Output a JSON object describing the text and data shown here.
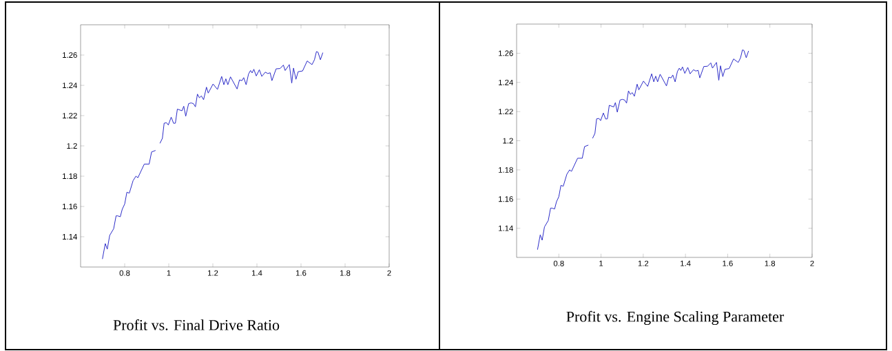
{
  "chart_data": [
    {
      "type": "line",
      "title": "Profit vs. Final Drive Ratio",
      "xlim": [
        0.6,
        2
      ],
      "ylim": [
        1.12,
        1.28
      ],
      "xticks": [
        0.8,
        1,
        1.2,
        1.4,
        1.6,
        1.8,
        2
      ],
      "yticks": [
        1.14,
        1.16,
        1.18,
        1.2,
        1.22,
        1.24,
        1.26
      ],
      "series": [
        {
          "color": "#2b2bc8",
          "x": [
            0.699,
            0.712,
            0.721,
            0.732,
            0.75,
            0.761,
            0.768,
            0.78,
            0.789,
            0.8,
            0.81,
            0.821,
            0.838,
            0.851,
            0.86,
            0.889,
            0.9,
            0.911,
            0.922,
            0.94,
            0.95,
            0.96,
            0.971,
            0.979,
            0.99,
            0.998,
            1.011,
            1.022,
            1.03,
            1.039,
            1.06,
            1.068,
            1.077,
            1.09,
            1.101,
            1.112,
            1.121,
            1.13,
            1.139,
            1.148,
            1.158,
            1.171,
            1.179,
            1.201,
            1.221,
            1.24,
            1.25,
            1.259,
            1.268,
            1.28,
            1.31,
            1.321,
            1.332,
            1.34,
            1.351,
            1.362,
            1.371,
            1.378,
            1.386,
            1.397,
            1.411,
            1.422,
            1.438,
            1.449,
            1.46,
            1.468,
            1.487,
            1.505,
            1.52,
            1.528,
            1.547,
            1.558,
            1.566,
            1.577,
            1.587,
            1.607,
            1.628,
            1.65,
            1.661,
            1.67,
            1.677,
            1.688,
            1.699
          ],
          "values": [
            1.1253,
            1.1355,
            1.1318,
            1.1409,
            1.1453,
            1.1538,
            1.1538,
            1.1532,
            1.1582,
            1.1616,
            1.1694,
            1.1688,
            1.177,
            1.18,
            1.179,
            1.188,
            1.188,
            1.188,
            1.196,
            1.197,
            null,
            1.2017,
            1.205,
            1.215,
            1.2153,
            1.2138,
            1.219,
            1.2149,
            1.215,
            1.2243,
            1.2232,
            1.2262,
            1.2196,
            1.2279,
            1.2284,
            1.2279,
            1.2258,
            1.2342,
            1.2318,
            1.233,
            1.2305,
            1.2388,
            1.2349,
            1.2409,
            1.2373,
            1.2459,
            1.2404,
            1.2443,
            1.2404,
            1.2456,
            1.2376,
            1.2436,
            1.2431,
            1.2451,
            1.2404,
            1.2475,
            1.2498,
            1.2482,
            1.2506,
            1.2462,
            1.2503,
            1.2459,
            1.2487,
            1.2478,
            1.2483,
            1.2431,
            1.2509,
            1.2511,
            1.2534,
            1.2498,
            1.2537,
            1.2415,
            1.2514,
            1.244,
            1.249,
            1.2495,
            1.2561,
            1.2537,
            1.2569,
            1.2623,
            1.2619,
            1.2569,
            1.2616
          ]
        }
      ]
    },
    {
      "type": "line",
      "title": "Profit vs. Engine Scaling Parameter",
      "xlim": [
        0.6,
        2
      ],
      "ylim": [
        1.12,
        1.28
      ],
      "xticks": [
        0.8,
        1,
        1.2,
        1.4,
        1.6,
        1.8,
        2
      ],
      "yticks": [
        1.14,
        1.16,
        1.18,
        1.2,
        1.22,
        1.24,
        1.26
      ],
      "series": [
        {
          "color": "#2b2bc8",
          "x": [
            0.699,
            0.712,
            0.721,
            0.732,
            0.75,
            0.761,
            0.768,
            0.78,
            0.789,
            0.8,
            0.81,
            0.821,
            0.838,
            0.851,
            0.86,
            0.889,
            0.9,
            0.911,
            0.922,
            0.94,
            0.95,
            0.96,
            0.971,
            0.979,
            0.99,
            0.998,
            1.011,
            1.022,
            1.03,
            1.039,
            1.06,
            1.068,
            1.077,
            1.09,
            1.101,
            1.112,
            1.121,
            1.13,
            1.139,
            1.148,
            1.158,
            1.171,
            1.179,
            1.201,
            1.221,
            1.24,
            1.25,
            1.259,
            1.268,
            1.28,
            1.31,
            1.321,
            1.332,
            1.34,
            1.351,
            1.362,
            1.371,
            1.378,
            1.386,
            1.397,
            1.411,
            1.422,
            1.438,
            1.449,
            1.46,
            1.468,
            1.487,
            1.505,
            1.52,
            1.528,
            1.547,
            1.558,
            1.566,
            1.577,
            1.587,
            1.607,
            1.628,
            1.65,
            1.661,
            1.67,
            1.677,
            1.688,
            1.699
          ],
          "values": [
            1.1253,
            1.1355,
            1.1318,
            1.1409,
            1.1453,
            1.1538,
            1.1538,
            1.1532,
            1.1582,
            1.1616,
            1.1694,
            1.1688,
            1.177,
            1.18,
            1.179,
            1.188,
            1.188,
            1.188,
            1.196,
            1.197,
            null,
            1.2017,
            1.205,
            1.215,
            1.2153,
            1.2138,
            1.219,
            1.2149,
            1.215,
            1.2243,
            1.2232,
            1.2262,
            1.2196,
            1.2279,
            1.2284,
            1.2279,
            1.2258,
            1.2342,
            1.2318,
            1.233,
            1.2305,
            1.2388,
            1.2349,
            1.2409,
            1.2373,
            1.2459,
            1.2404,
            1.2443,
            1.2404,
            1.2456,
            1.2376,
            1.2436,
            1.2431,
            1.2451,
            1.2404,
            1.2475,
            1.2498,
            1.2482,
            1.2506,
            1.2462,
            1.2503,
            1.2459,
            1.2487,
            1.2478,
            1.2483,
            1.2431,
            1.2509,
            1.2511,
            1.2534,
            1.2498,
            1.2537,
            1.2415,
            1.2514,
            1.244,
            1.249,
            1.2495,
            1.2561,
            1.2537,
            1.2569,
            1.2623,
            1.2619,
            1.2569,
            1.2616
          ]
        }
      ]
    }
  ]
}
